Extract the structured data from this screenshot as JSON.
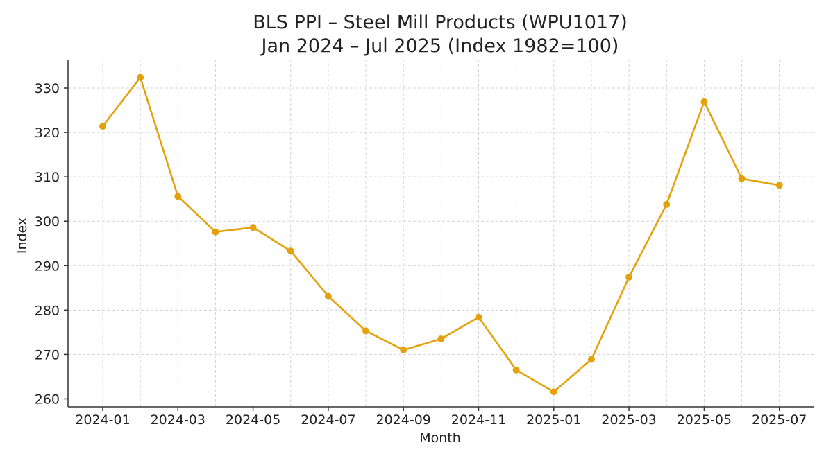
{
  "chart_data": {
    "type": "line",
    "title": "BLS PPI – Steel Mill Products (WPU1017)",
    "subtitle": "Jan 2024 – Jul 2025 (Index 1982=100)",
    "xlabel": "Month",
    "ylabel": "Index",
    "color": "#E3A20C",
    "grid": true,
    "x": [
      "2024-01",
      "2024-02",
      "2024-03",
      "2024-04",
      "2024-05",
      "2024-06",
      "2024-07",
      "2024-08",
      "2024-09",
      "2024-10",
      "2024-11",
      "2024-12",
      "2025-01",
      "2025-02",
      "2025-03",
      "2025-04",
      "2025-05",
      "2025-06",
      "2025-07"
    ],
    "x_tick_labels": [
      "2024-01",
      "2024-03",
      "2024-05",
      "2024-07",
      "2024-09",
      "2024-11",
      "2025-01",
      "2025-03",
      "2025-05",
      "2025-07"
    ],
    "y_ticks": [
      260,
      270,
      280,
      290,
      300,
      310,
      320,
      330
    ],
    "ylim": [
      258.2,
      336.4
    ],
    "series": [
      {
        "name": "PPI Steel Mill Products",
        "values": [
          321.4,
          332.4,
          305.6,
          297.6,
          298.6,
          293.3,
          283.1,
          275.3,
          271.0,
          273.5,
          278.4,
          266.5,
          261.6,
          268.9,
          287.4,
          303.8,
          326.9,
          309.6,
          308.1
        ]
      }
    ]
  }
}
